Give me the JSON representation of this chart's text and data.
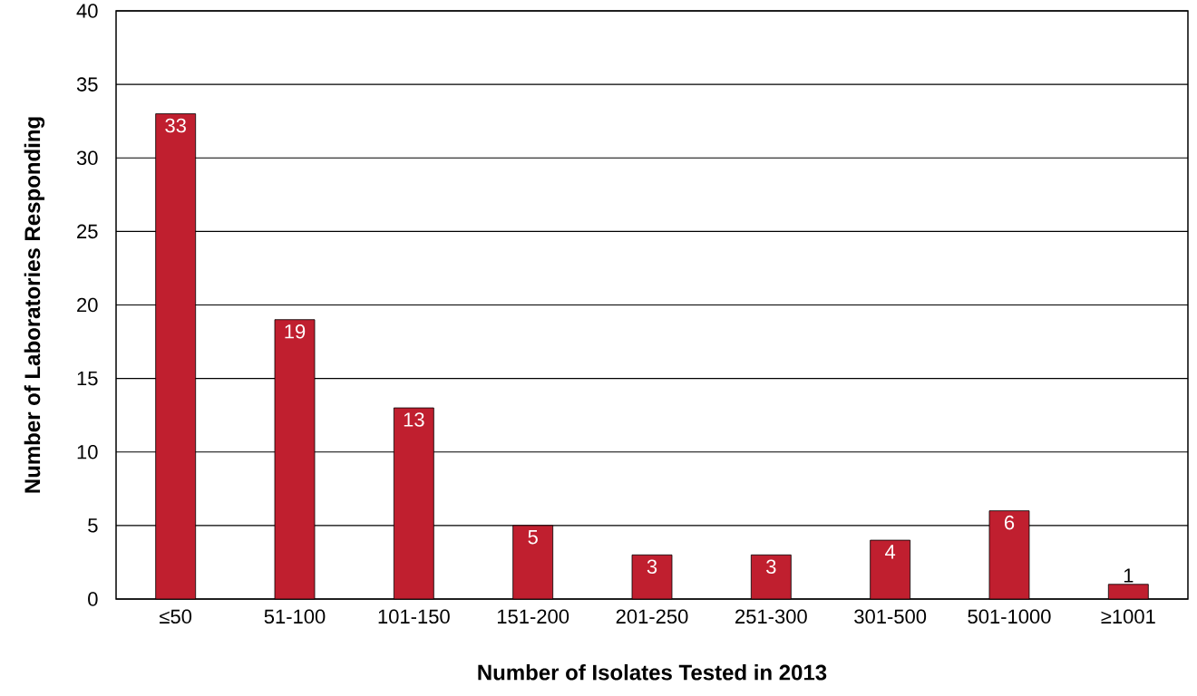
{
  "chart_data": {
    "type": "bar",
    "xlabel": "Number of Isolates Tested in 2013",
    "ylabel": "Number of Laboratories Responding",
    "categories": [
      "≤50",
      "51-100",
      "101-150",
      "151-200",
      "201-250",
      "251-300",
      "301-500",
      "501-1000",
      "≥1001"
    ],
    "values": [
      33,
      19,
      13,
      5,
      3,
      3,
      4,
      6,
      1
    ],
    "color": "#c01f2f",
    "ylim": [
      0,
      40
    ],
    "yticks": [
      0,
      5,
      10,
      15,
      20,
      25,
      30,
      35,
      40
    ],
    "grid": "y",
    "data_labels": true
  }
}
